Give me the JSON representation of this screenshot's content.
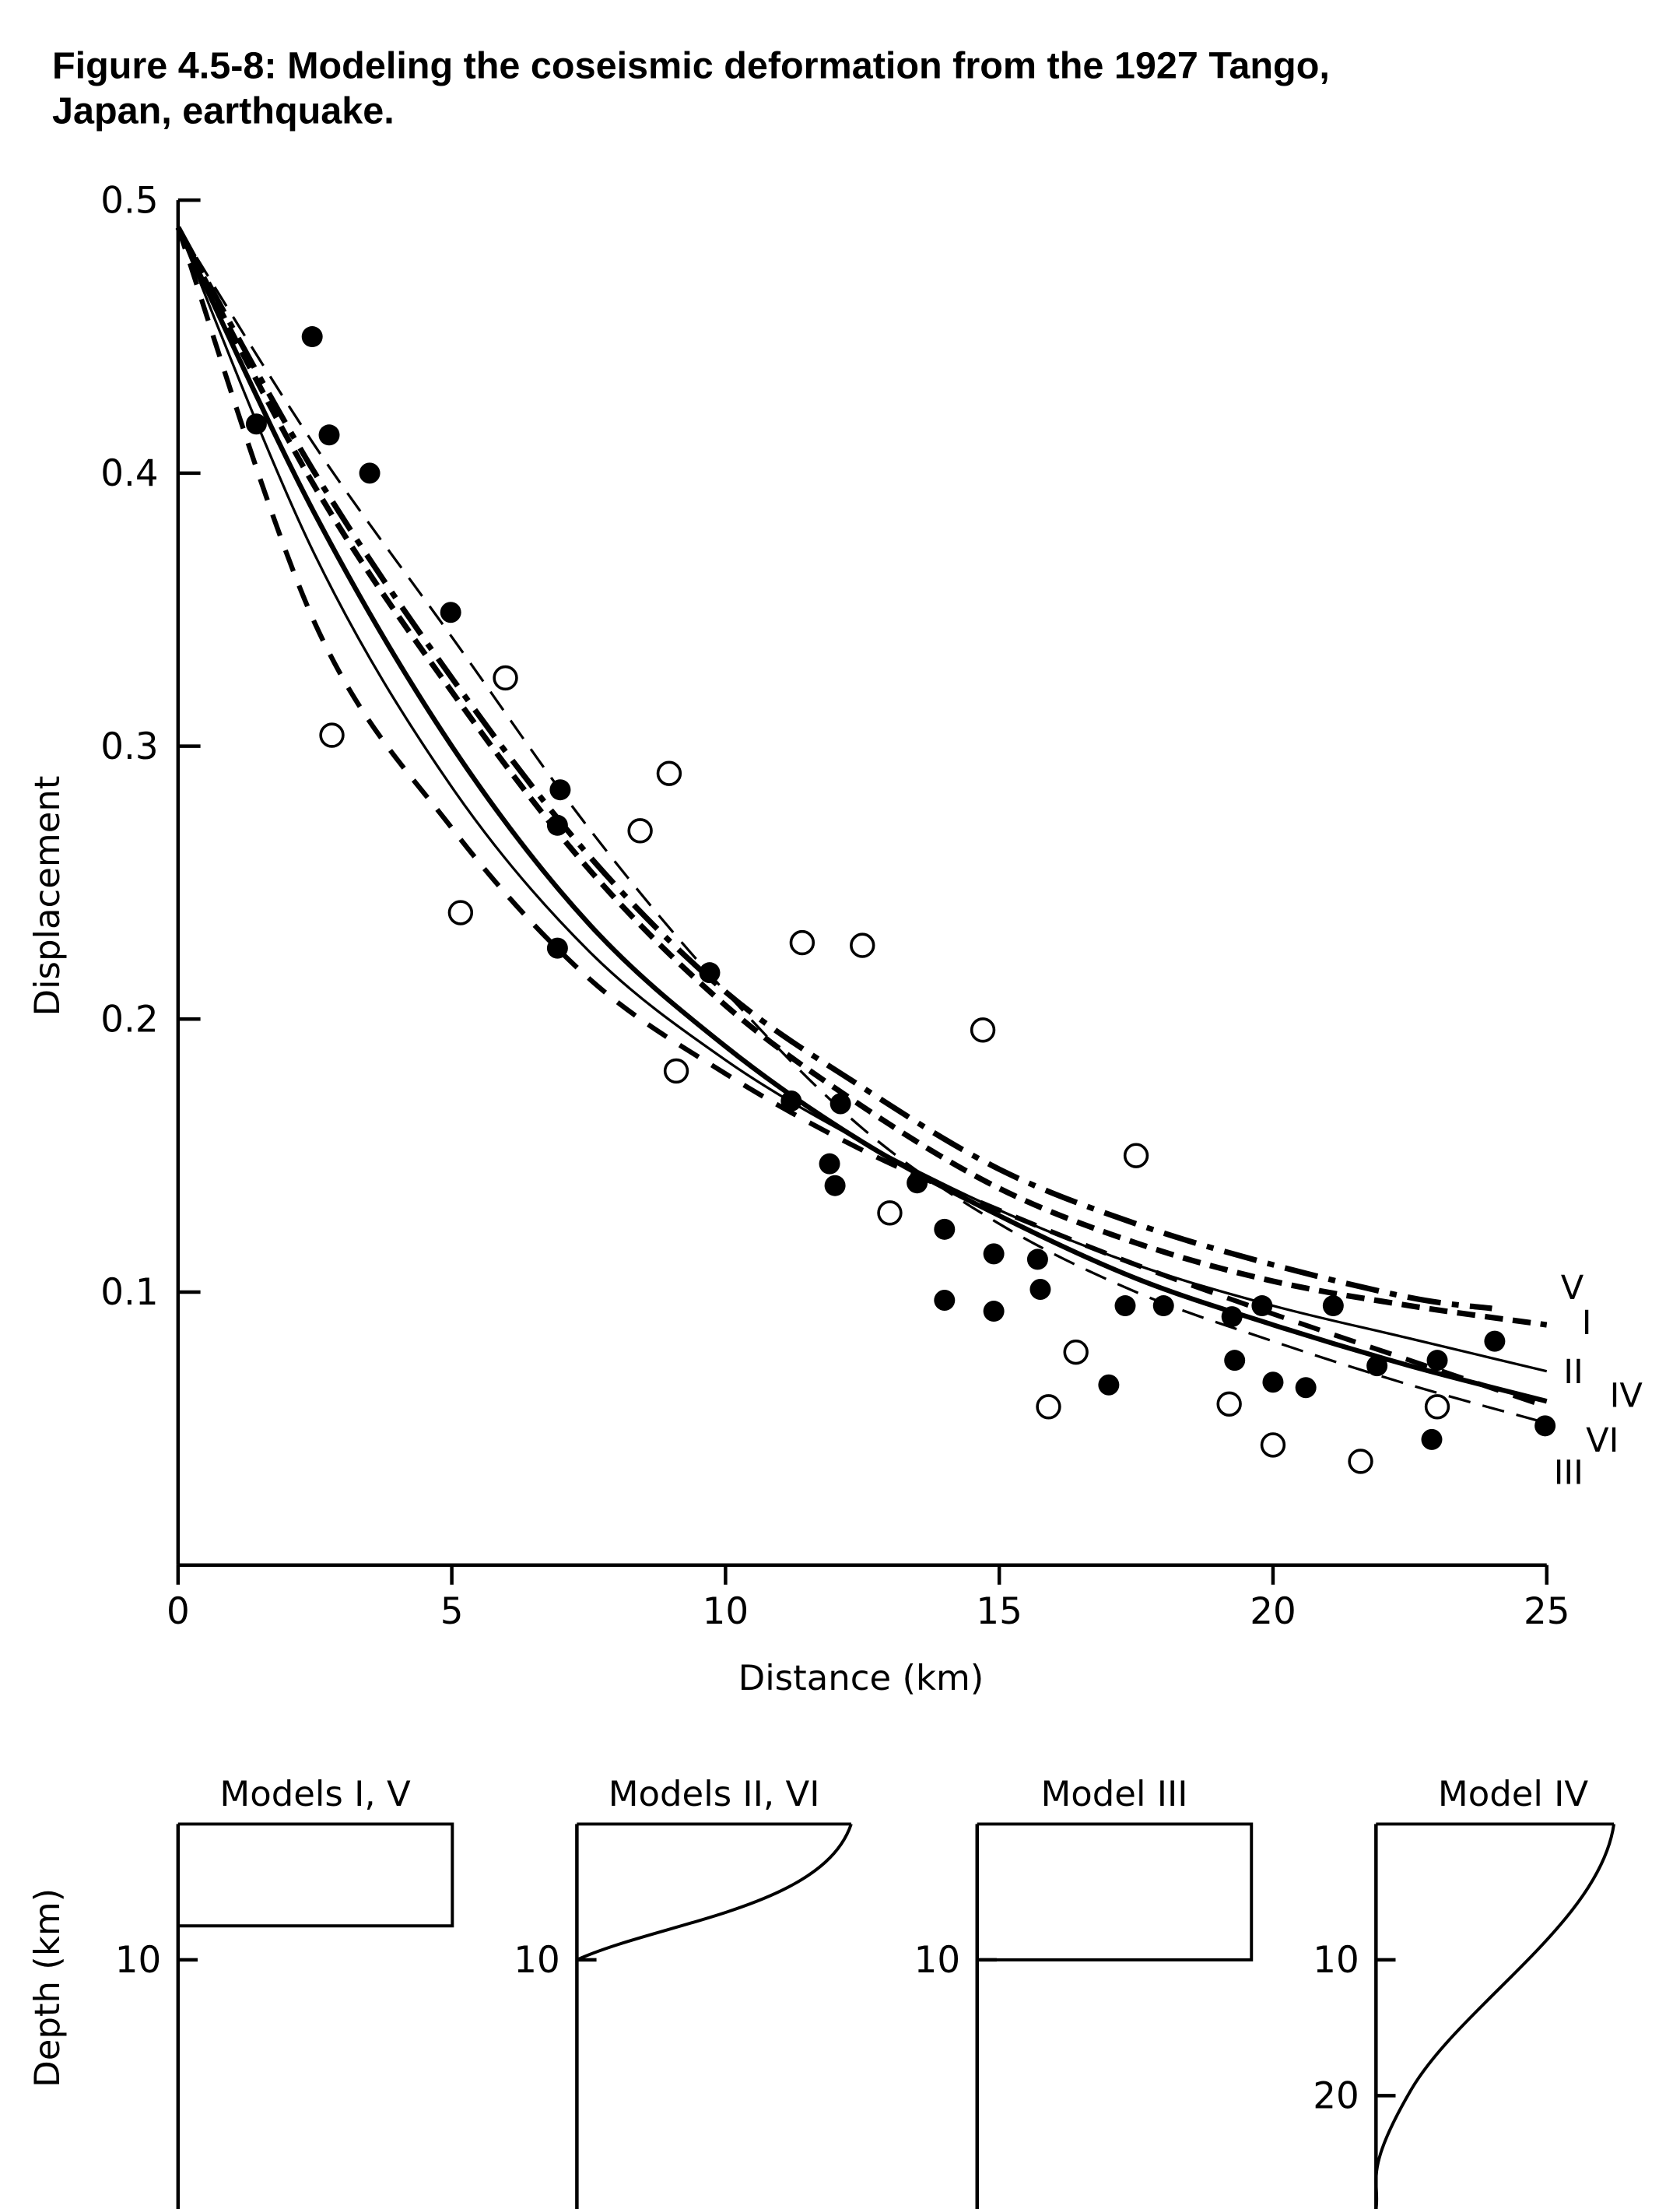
{
  "title_line1": "Figure 4.5-8: Modeling the coseismic deformation from the 1927 Tango,",
  "title_line2": "Japan, earthquake.",
  "chart_data": [
    {
      "type": "scatter",
      "xlabel": "Distance (km)",
      "ylabel": "Displacement",
      "xlim": [
        0,
        25
      ],
      "ylim": [
        0,
        0.5
      ],
      "xticks": [
        "0",
        "5",
        "10",
        "15",
        "20",
        "25"
      ],
      "yticks": [
        "0.1",
        "0.2",
        "0.3",
        "0.4",
        "0.5"
      ],
      "grid": false,
      "filled_points": [
        [
          1.43,
          0.418
        ],
        [
          2.45,
          0.45
        ],
        [
          2.76,
          0.414
        ],
        [
          3.5,
          0.4
        ],
        [
          4.98,
          0.349
        ],
        [
          6.98,
          0.284
        ],
        [
          6.93,
          0.271
        ],
        [
          6.93,
          0.226
        ],
        [
          9.71,
          0.217
        ],
        [
          11.2,
          0.17
        ],
        [
          12.1,
          0.169
        ],
        [
          11.9,
          0.147
        ],
        [
          12.0,
          0.139
        ],
        [
          13.5,
          0.14
        ],
        [
          14.0,
          0.123
        ],
        [
          14.0,
          0.097
        ],
        [
          14.9,
          0.114
        ],
        [
          14.9,
          0.093
        ],
        [
          15.7,
          0.112
        ],
        [
          15.75,
          0.101
        ],
        [
          17.0,
          0.066
        ],
        [
          17.3,
          0.095
        ],
        [
          18.0,
          0.095
        ],
        [
          19.25,
          0.091
        ],
        [
          19.3,
          0.075
        ],
        [
          19.8,
          0.095
        ],
        [
          20.0,
          0.067
        ],
        [
          20.6,
          0.065
        ],
        [
          21.1,
          0.095
        ],
        [
          21.9,
          0.073
        ],
        [
          23.0,
          0.075
        ],
        [
          22.9,
          0.046
        ],
        [
          24.05,
          0.082
        ],
        [
          24.97,
          0.051
        ]
      ],
      "open_points": [
        [
          2.81,
          0.304
        ],
        [
          5.98,
          0.325
        ],
        [
          5.16,
          0.239
        ],
        [
          8.44,
          0.269
        ],
        [
          8.97,
          0.29
        ],
        [
          9.1,
          0.181
        ],
        [
          11.4,
          0.228
        ],
        [
          12.5,
          0.227
        ],
        [
          13.0,
          0.129
        ],
        [
          14.7,
          0.196
        ],
        [
          15.9,
          0.058
        ],
        [
          16.4,
          0.078
        ],
        [
          17.5,
          0.15
        ],
        [
          19.2,
          0.059
        ],
        [
          20.0,
          0.044
        ],
        [
          21.6,
          0.038
        ],
        [
          23.0,
          0.058
        ]
      ],
      "series": [
        {
          "name": "V",
          "style": "dash-dot-heavy",
          "x": [
            0,
            2.5,
            5,
            7.5,
            10,
            12.5,
            15,
            17.5,
            20,
            22.5,
            24
          ],
          "values": [
            0.49,
            0.4,
            0.325,
            0.26,
            0.21,
            0.175,
            0.145,
            0.125,
            0.11,
            0.098,
            0.094
          ]
        },
        {
          "name": "I",
          "style": "dashed-heavy",
          "x": [
            0,
            2.5,
            5,
            7.5,
            10,
            12.5,
            15,
            17.5,
            20,
            22.5,
            25
          ],
          "values": [
            0.49,
            0.395,
            0.32,
            0.255,
            0.205,
            0.168,
            0.138,
            0.118,
            0.104,
            0.095,
            0.088
          ]
        },
        {
          "name": "II",
          "style": "solid-thin",
          "x": [
            0,
            2.5,
            5,
            7.5,
            10,
            12.5,
            15,
            17.5,
            20,
            22.5,
            25
          ],
          "values": [
            0.49,
            0.37,
            0.285,
            0.225,
            0.185,
            0.155,
            0.13,
            0.11,
            0.095,
            0.083,
            0.071
          ]
        },
        {
          "name": "IV",
          "style": "solid-thick",
          "x": [
            0,
            2.5,
            5,
            7.5,
            10,
            12.5,
            15,
            17.5,
            20,
            22.5,
            25
          ],
          "values": [
            0.49,
            0.385,
            0.3,
            0.235,
            0.19,
            0.155,
            0.128,
            0.105,
            0.088,
            0.073,
            0.06
          ]
        },
        {
          "name": "VI",
          "style": "dashed-thin",
          "x": [
            0,
            2.5,
            5,
            7.5,
            10,
            12.5,
            15,
            17.5,
            20,
            22.5,
            25
          ],
          "values": [
            0.49,
            0.41,
            0.34,
            0.27,
            0.21,
            0.16,
            0.125,
            0.1,
            0.082,
            0.066,
            0.052
          ]
        },
        {
          "name": "III",
          "style": "dashed-medium",
          "x": [
            0,
            2.5,
            5,
            7.5,
            10,
            12.5,
            15,
            17.5,
            20,
            22.5,
            25
          ],
          "values": [
            0.49,
            0.345,
            0.27,
            0.215,
            0.18,
            0.152,
            0.13,
            0.11,
            0.092,
            0.075,
            0.058
          ]
        }
      ]
    }
  ],
  "depth_panels": {
    "ylabel": "Depth (km)",
    "panels": [
      {
        "title": "Models I, V",
        "shape": "box",
        "slip_bottom_depth_km": 7.5,
        "ticks": [
          "10"
        ]
      },
      {
        "title": "Models II, VI",
        "shape": "taper",
        "slip_bottom_depth_km": 10,
        "ticks": [
          "10"
        ]
      },
      {
        "title": "Model III",
        "shape": "box",
        "slip_bottom_depth_km": 10,
        "ticks": [
          "10"
        ]
      },
      {
        "title": "Model IV",
        "shape": "taper",
        "slip_bottom_depth_km": 28,
        "ticks": [
          "10",
          "20"
        ]
      }
    ]
  }
}
